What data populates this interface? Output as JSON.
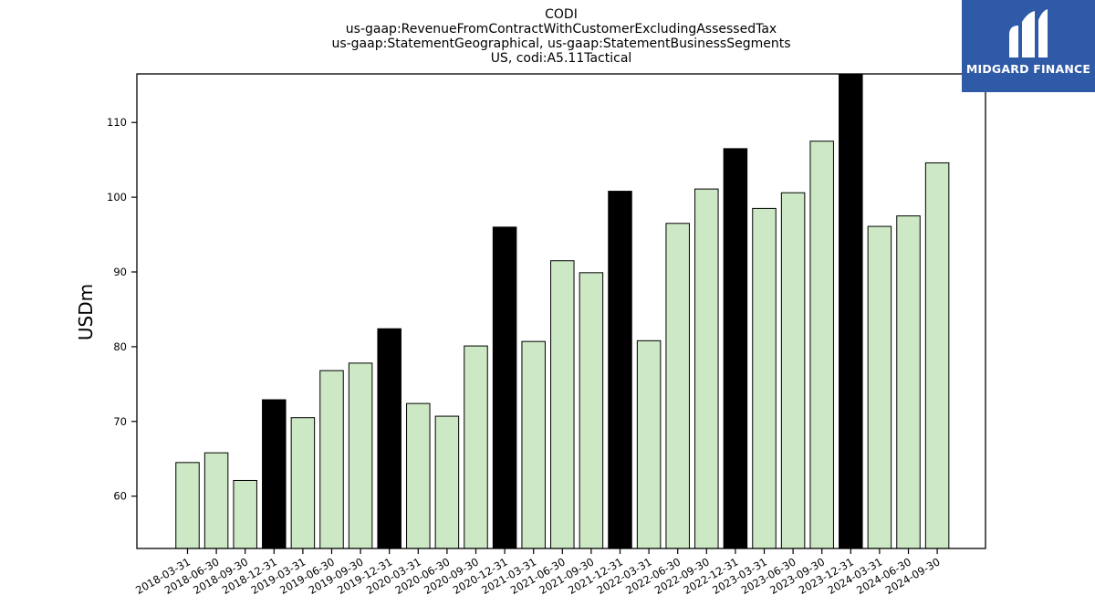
{
  "chart_data": {
    "type": "bar",
    "title_lines": [
      "CODI",
      "us-gaap:RevenueFromContractWithCustomerExcludingAssessedTax",
      "us-gaap:StatementGeographical, us-gaap:StatementBusinessSegments",
      "US, codi:A5.11Tactical"
    ],
    "xlabel": "",
    "ylabel": "USDm",
    "ylim": [
      53,
      116.5
    ],
    "yticks": [
      60,
      70,
      80,
      90,
      100,
      110
    ],
    "categories": [
      "2018-03-31",
      "2018-06-30",
      "2018-09-30",
      "2018-12-31",
      "2019-03-31",
      "2019-06-30",
      "2019-09-30",
      "2019-12-31",
      "2020-03-31",
      "2020-06-30",
      "2020-09-30",
      "2020-12-31",
      "2021-03-31",
      "2021-06-30",
      "2021-09-30",
      "2021-12-31",
      "2022-03-31",
      "2022-06-30",
      "2022-09-30",
      "2022-12-31",
      "2023-03-31",
      "2023-06-30",
      "2023-09-30",
      "2023-12-31",
      "2024-03-31",
      "2024-06-30",
      "2024-09-30"
    ],
    "values": [
      64.5,
      65.8,
      62.1,
      72.9,
      70.5,
      76.8,
      77.8,
      82.4,
      72.4,
      70.7,
      80.1,
      96.0,
      80.7,
      91.5,
      89.9,
      100.8,
      80.8,
      96.5,
      101.1,
      106.5,
      98.5,
      100.6,
      107.5,
      116.5,
      96.1,
      97.5,
      104.6
    ],
    "bar_colors": {
      "quarter": "#cce8c4",
      "year_end": "#000000",
      "edge": "#000000"
    },
    "grid": false,
    "legend": "none"
  },
  "logo": {
    "text": "MIDGARD FINANCE",
    "background": "#2f5aa8",
    "icon": "midgard-logo-mark"
  }
}
